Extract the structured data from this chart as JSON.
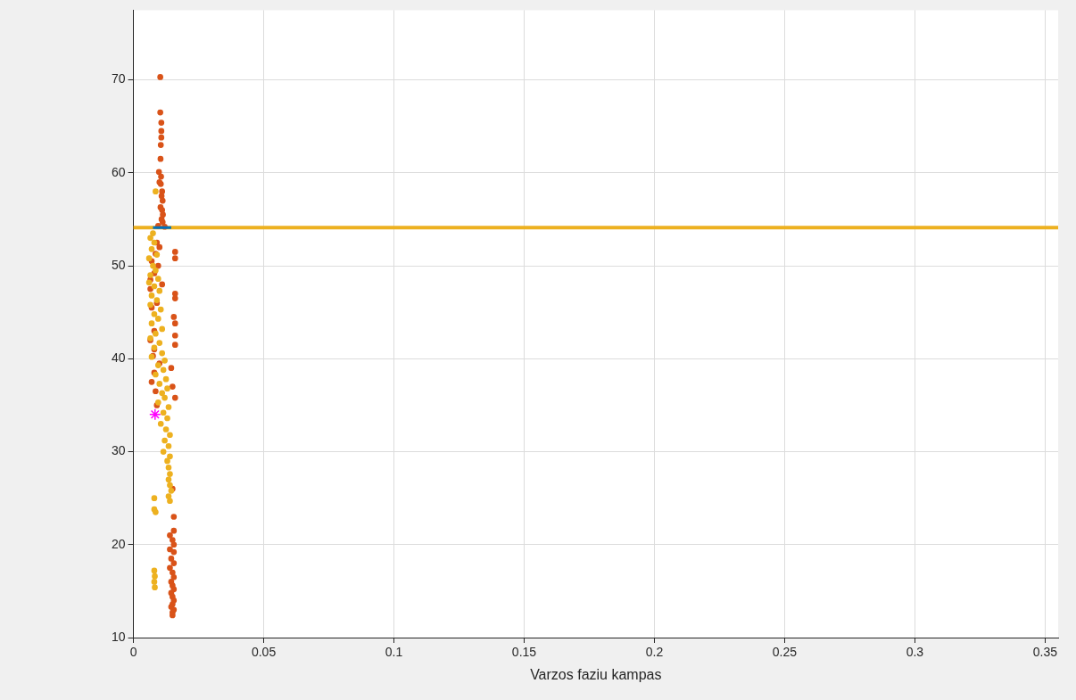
{
  "chart_data": {
    "type": "scatter",
    "xlabel": "Varzos faziu kampas",
    "xlim": [
      0,
      0.355
    ],
    "ylim": [
      10,
      77.5
    ],
    "xticks": [
      0,
      0.05,
      0.1,
      0.15,
      0.2,
      0.25,
      0.3,
      0.35
    ],
    "yticks": [
      10,
      20,
      30,
      40,
      50,
      60,
      70
    ],
    "grid": true,
    "legend": false,
    "marker": "circle",
    "ref_lines": [
      {
        "axis": "y",
        "value": 54.1,
        "color": "#edb120"
      }
    ],
    "series": [
      {
        "color": "#d95319",
        "x": [
          0.0103,
          0.0103,
          0.0107,
          0.0107,
          0.0107,
          0.0105,
          0.0104,
          0.0098,
          0.0106,
          0.01,
          0.0105,
          0.011,
          0.0108,
          0.0112,
          0.0104,
          0.011,
          0.0113,
          0.0108,
          0.0112,
          0.0095,
          0.012,
          0.009,
          0.01,
          0.0085,
          0.016,
          0.016,
          0.007,
          0.0095,
          0.008,
          0.0065,
          0.011,
          0.0065,
          0.016,
          0.016,
          0.009,
          0.007,
          0.0155,
          0.016,
          0.008,
          0.016,
          0.0065,
          0.016,
          0.008,
          0.0075,
          0.01,
          0.0145,
          0.008,
          0.007,
          0.015,
          0.0085,
          0.016,
          0.009,
          0.015,
          0.0155,
          0.0155,
          0.014,
          0.015,
          0.0155,
          0.014,
          0.0155,
          0.0145,
          0.0155,
          0.014,
          0.015,
          0.0155,
          0.0145,
          0.015,
          0.0155,
          0.0145,
          0.015,
          0.0155,
          0.015,
          0.0145,
          0.0155,
          0.015,
          0.015
        ],
        "values": [
          70.3,
          66.5,
          65.4,
          64.5,
          63.8,
          63.0,
          61.5,
          60.1,
          59.6,
          59.0,
          58.8,
          58.0,
          57.5,
          57.0,
          56.3,
          56.0,
          55.5,
          55.0,
          54.7,
          54.3,
          54.2,
          52.5,
          52.0,
          51.3,
          51.5,
          50.8,
          50.5,
          50.0,
          49.2,
          48.5,
          48.0,
          47.5,
          47.0,
          46.5,
          46.0,
          45.5,
          44.5,
          43.8,
          43.0,
          42.5,
          42.0,
          41.5,
          41.0,
          40.3,
          39.5,
          39.0,
          38.5,
          37.5,
          37.0,
          36.5,
          35.8,
          35.0,
          26.0,
          23.0,
          21.5,
          21.0,
          20.5,
          20.0,
          19.5,
          19.2,
          18.5,
          18.0,
          17.5,
          17.0,
          16.5,
          16.0,
          15.6,
          15.2,
          14.8,
          14.4,
          14.0,
          13.6,
          13.3,
          13.0,
          12.7,
          12.4
        ]
      },
      {
        "color": "#edb120",
        "x": [
          0.0085,
          0.0075,
          0.0065,
          0.008,
          0.007,
          0.009,
          0.006,
          0.0075,
          0.0085,
          0.0065,
          0.0095,
          0.006,
          0.008,
          0.01,
          0.007,
          0.009,
          0.0065,
          0.0105,
          0.008,
          0.0095,
          0.007,
          0.011,
          0.0085,
          0.0065,
          0.01,
          0.008,
          0.011,
          0.007,
          0.012,
          0.0095,
          0.0115,
          0.0085,
          0.0125,
          0.01,
          0.013,
          0.011,
          0.012,
          0.0095,
          0.0135,
          0.0115,
          0.013,
          0.0105,
          0.0125,
          0.014,
          0.012,
          0.0135,
          0.0115,
          0.014,
          0.013,
          0.0135,
          0.014,
          0.0135,
          0.014,
          0.0145,
          0.0135,
          0.014,
          0.008,
          0.008,
          0.0085,
          0.008,
          0.0082,
          0.008,
          0.0082
        ],
        "values": [
          58.0,
          53.5,
          53.0,
          52.5,
          51.8,
          51.2,
          50.8,
          50.0,
          49.5,
          49.0,
          48.6,
          48.2,
          47.8,
          47.3,
          46.8,
          46.3,
          45.8,
          45.3,
          44.8,
          44.3,
          43.8,
          43.2,
          42.7,
          42.2,
          41.7,
          41.2,
          40.6,
          40.2,
          39.8,
          39.3,
          38.8,
          38.3,
          37.8,
          37.3,
          36.8,
          36.3,
          35.8,
          35.3,
          34.8,
          34.2,
          33.6,
          33.0,
          32.4,
          31.8,
          31.2,
          30.6,
          30.0,
          29.5,
          29.0,
          28.3,
          27.6,
          27.0,
          26.4,
          25.8,
          25.2,
          24.7,
          25.0,
          23.8,
          23.5,
          17.2,
          16.6,
          16.0,
          15.4
        ]
      },
      {
        "type": "line",
        "color": "#0072bd",
        "marker": "none",
        "x": [
          0.0075,
          0.0145
        ],
        "values": [
          54.1,
          54.1
        ]
      },
      {
        "type": "scatter",
        "color": "#ff00ff",
        "marker": "cross",
        "x": [
          0.0083
        ],
        "values": [
          34.0
        ]
      }
    ]
  }
}
